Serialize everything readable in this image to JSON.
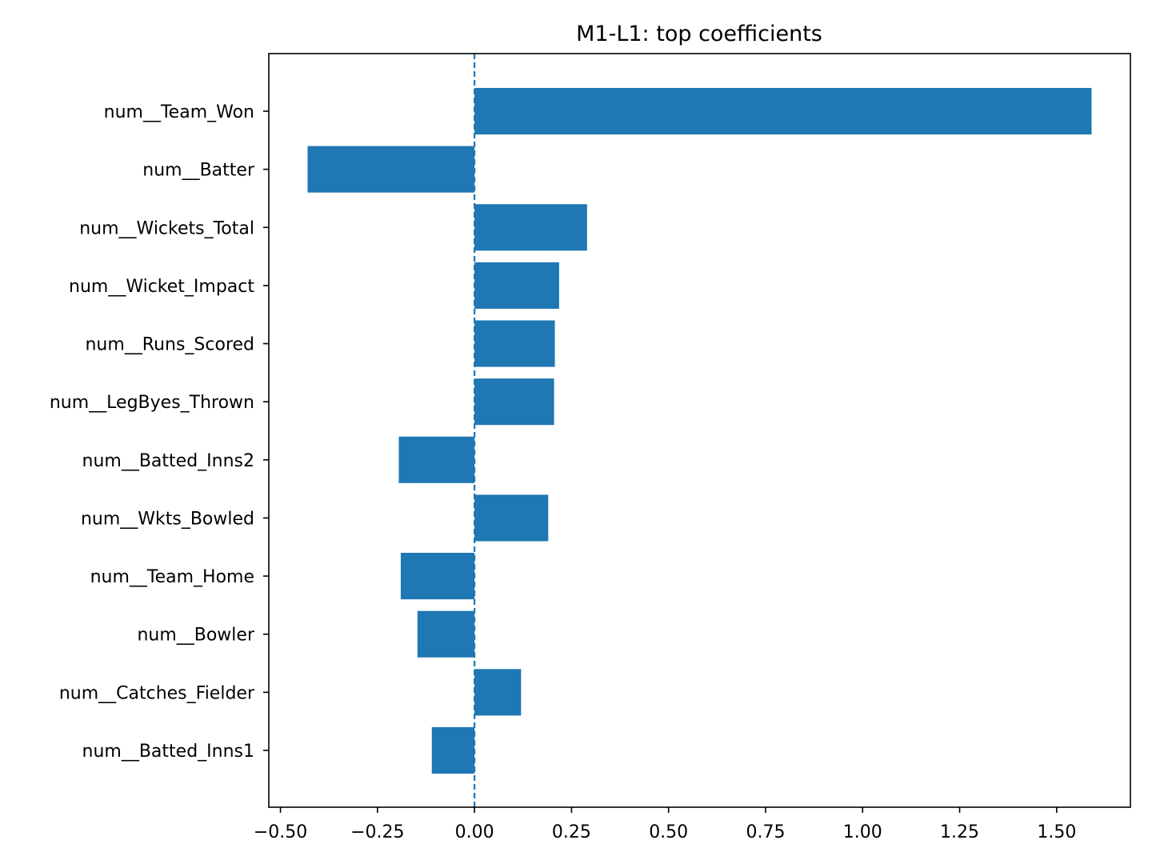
{
  "chart_data": {
    "type": "bar",
    "orientation": "horizontal",
    "title": "M1-L1: top coefficients",
    "xlabel": "",
    "ylabel": "",
    "categories": [
      "num__Team_Won",
      "num__Batter",
      "num__Wickets_Total",
      "num__Wicket_Impact",
      "num__Runs_Scored",
      "num__LegByes_Thrown",
      "num__Batted_Inns2",
      "num__Wkts_Bowled",
      "num__Team_Home",
      "num__Bowler",
      "num__Catches_Fielder",
      "num__Batted_Inns1"
    ],
    "values": [
      1.59,
      -0.43,
      0.29,
      0.218,
      0.207,
      0.205,
      -0.195,
      0.19,
      -0.19,
      -0.147,
      0.12,
      -0.11
    ],
    "xlim": [
      -0.53,
      1.69
    ],
    "xticks": [
      -0.5,
      -0.25,
      0.0,
      0.25,
      0.5,
      0.75,
      1.0,
      1.25,
      1.5
    ],
    "xtick_labels": [
      "−0.50",
      "−0.25",
      "0.00",
      "0.25",
      "0.50",
      "0.75",
      "1.00",
      "1.25",
      "1.50"
    ],
    "reference_line": {
      "x": 0,
      "style": "dashed"
    },
    "grid": false,
    "legend": "none",
    "colors": {
      "bar": "#1f77b4",
      "reference_line": "#1f77b4",
      "axes": "#000000"
    }
  }
}
